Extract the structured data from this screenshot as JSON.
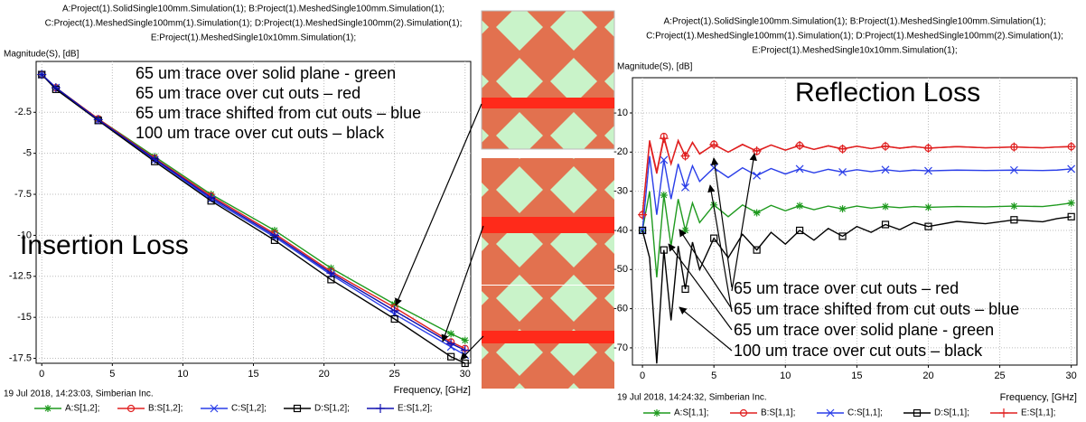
{
  "chart_data": [
    {
      "type": "line",
      "header": [
        "A:Project(1).SolidSingle100mm.Simulation(1); B:Project(1).MeshedSingle100mm.Simulation(1);",
        "C:Project(1).MeshedSingle100mm(1).Simulation(1); D:Project(1).MeshedSingle100mm(2).Simulation(1);",
        "E:Project(1).MeshedSingle10x10mm.Simulation(1);"
      ],
      "title": "Insertion Loss",
      "ylabel": "Magnitude(S), [dB]",
      "xlabel": "Frequency, [GHz]",
      "footer": "19 Jul 2018, 14:23:03, Simberian Inc.",
      "annotations": [
        "65 um trace over solid plane - green",
        "65 um trace over cut outs – red",
        "65 um trace shifted from cut outs – blue",
        "100 um trace over cut outs – black"
      ],
      "x": [
        0,
        1,
        4,
        8,
        12,
        16.5,
        20.5,
        25,
        29,
        30
      ],
      "series": [
        {
          "name": "A:S[1,2];",
          "color": "#1f9a1f",
          "marker": "star",
          "values": [
            -0.2,
            -1.0,
            -2.9,
            -5.2,
            -7.5,
            -9.7,
            -12.0,
            -14.2,
            -16.0,
            -16.4
          ]
        },
        {
          "name": "B:S[1,2];",
          "color": "#e02020",
          "marker": "circle",
          "values": [
            -0.2,
            -1.0,
            -2.9,
            -5.3,
            -7.6,
            -9.9,
            -12.2,
            -14.4,
            -16.5,
            -16.9
          ]
        },
        {
          "name": "C:S[1,2];",
          "color": "#2a3ee8",
          "marker": "x",
          "values": [
            -0.2,
            -1.0,
            -3.0,
            -5.4,
            -7.8,
            -10.1,
            -12.4,
            -14.8,
            -16.8,
            -17.3
          ]
        },
        {
          "name": "D:S[1,2];",
          "color": "#000000",
          "marker": "square",
          "values": [
            -0.2,
            -1.1,
            -3.0,
            -5.5,
            -7.9,
            -10.3,
            -12.7,
            -15.1,
            -17.4,
            -17.8
          ]
        },
        {
          "name": "E:S[1,2];",
          "color": "#1010b0",
          "marker": "plus",
          "values": [
            -0.2,
            -1.0,
            -2.95,
            -5.35,
            -7.7,
            -10.0,
            -12.3,
            -14.6,
            -16.6,
            -17.0
          ]
        }
      ],
      "xlim": [
        -0.4,
        30.4
      ],
      "ylim": [
        0.6,
        -17.8
      ],
      "xticks": [
        0,
        5,
        10,
        15,
        20,
        25,
        30
      ],
      "yticks": [
        -2.5,
        -5,
        -7.5,
        -10,
        -12.5,
        -15,
        -17.5
      ],
      "grid": true
    },
    {
      "type": "line",
      "header": [
        "A:Project(1).SolidSingle100mm.Simulation(1); B:Project(1).MeshedSingle100mm.Simulation(1);",
        "C:Project(1).MeshedSingle100mm(1).Simulation(1); D:Project(1).MeshedSingle100mm(2).Simulation(1);",
        "E:Project(1).MeshedSingle10x10mm.Simulation(1);"
      ],
      "title": "Reflection Loss",
      "ylabel": "Magnitude(S), [dB]",
      "xlabel": "Frequency, [GHz]",
      "footer": "19 Jul 2018, 14:24:32, Simberian Inc.",
      "annotations": [
        "65 um trace over cut outs – red",
        "65 um trace shifted from cut outs – blue",
        "65 um trace over solid plane - green",
        "100 um trace over cut outs – black"
      ],
      "x": [
        0,
        0.5,
        1,
        1.5,
        2,
        2.5,
        3,
        3.5,
        4,
        5,
        6,
        7,
        8,
        9,
        10,
        11,
        12,
        13,
        14,
        15,
        16,
        17,
        18,
        19,
        20,
        22,
        24,
        26,
        28,
        29,
        30
      ],
      "series": [
        {
          "name": "A:S[1,1];",
          "color": "#1f9a1f",
          "marker": "star",
          "values": [
            -40,
            -30,
            -52,
            -31,
            -44,
            -32,
            -40,
            -33,
            -38,
            -33.5,
            -36.5,
            -33.5,
            -35.5,
            -33.6,
            -35,
            -33.7,
            -34.7,
            -33.8,
            -34.5,
            -33.8,
            -34.3,
            -33.9,
            -34.2,
            -33.9,
            -34.1,
            -33.9,
            -34,
            -33.8,
            -33.9,
            -33.5,
            -33
          ]
        },
        {
          "name": "B:S[1,1];",
          "color": "#e02020",
          "marker": "circle",
          "values": [
            -36,
            -17,
            -25,
            -16,
            -23,
            -17,
            -21,
            -17.5,
            -20.5,
            -18,
            -20,
            -18,
            -19.8,
            -18.2,
            -19.5,
            -18.3,
            -19.3,
            -18.4,
            -19.2,
            -18.5,
            -19.1,
            -18.5,
            -19,
            -18.6,
            -19,
            -18.6,
            -18.9,
            -18.7,
            -18.9,
            -18.7,
            -18.6
          ]
        },
        {
          "name": "C:S[1,1];",
          "color": "#2a3ee8",
          "marker": "x",
          "values": [
            -40,
            -21,
            -36,
            -22,
            -32,
            -23,
            -29,
            -23.5,
            -27.5,
            -24,
            -26.5,
            -24,
            -26,
            -24.2,
            -25.6,
            -24.3,
            -25.3,
            -24.4,
            -25.1,
            -24.5,
            -25,
            -24.5,
            -24.9,
            -24.6,
            -24.8,
            -24.6,
            -24.7,
            -24.6,
            -24.7,
            -24.6,
            -24.3
          ]
        },
        {
          "name": "D:S[1,1];",
          "color": "#000000",
          "marker": "square",
          "values": [
            -40,
            -47,
            -74,
            -45,
            -63,
            -44,
            -55,
            -43,
            -50,
            -42,
            -47,
            -41,
            -45,
            -40.5,
            -43.5,
            -40,
            -42.5,
            -39.5,
            -41.5,
            -39,
            -40.5,
            -38.5,
            -39.8,
            -38,
            -39,
            -37.7,
            -38.3,
            -37.3,
            -37.8,
            -37,
            -36.5
          ]
        },
        {
          "name": "E:S[1,1];",
          "color": "#e02020",
          "marker": "plus",
          "values": [
            -36,
            -17.5,
            -25.5,
            -16.5,
            -23,
            -17.2,
            -21,
            -17.6,
            -20.4,
            -18.1,
            -20,
            -18.1,
            -19.7,
            -18.2,
            -19.5,
            -18.3,
            -19.3,
            -18.4,
            -19.2,
            -18.5,
            -19.1,
            -18.5,
            -19,
            -18.6,
            -19,
            -18.6,
            -18.9,
            -18.7,
            -18.9,
            -18.7,
            -18.6
          ]
        }
      ],
      "xlim": [
        -0.7,
        30.4
      ],
      "ylim": [
        -1,
        -74.4
      ],
      "xticks": [
        0,
        5,
        10,
        15,
        20,
        25,
        30
      ],
      "yticks": [
        -10,
        -20,
        -30,
        -40,
        -50,
        -60,
        -70
      ],
      "grid": true
    }
  ]
}
